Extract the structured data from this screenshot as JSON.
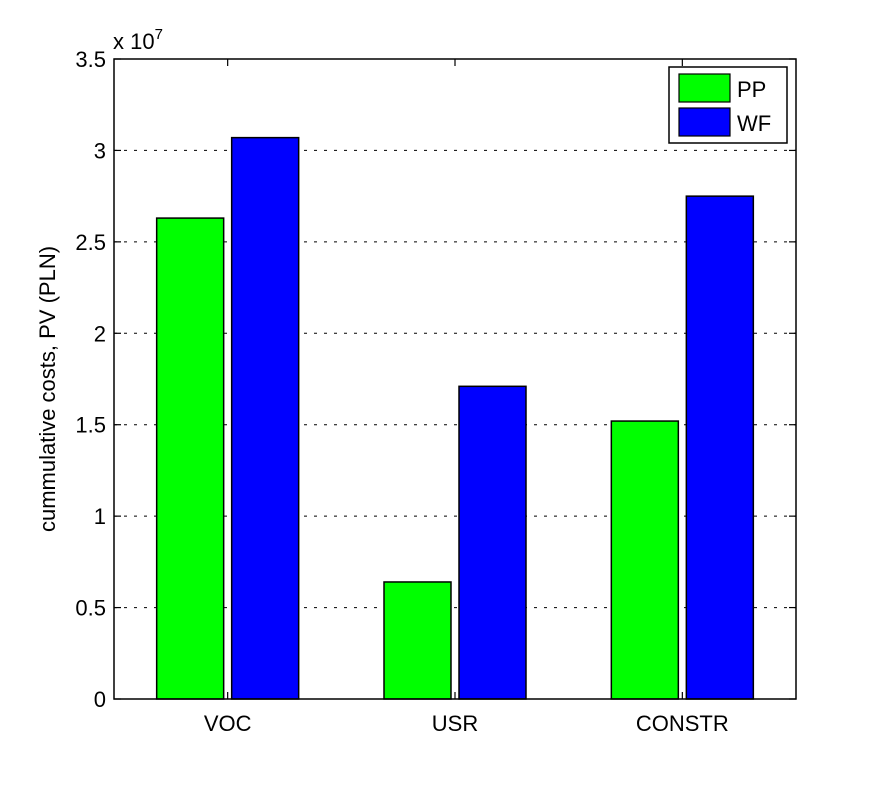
{
  "chart_data": {
    "type": "bar",
    "categories": [
      "VOC",
      "USR",
      "CONSTR"
    ],
    "series": [
      {
        "name": "PP",
        "values": [
          2.63,
          0.64,
          1.52
        ],
        "color": "#00ff00"
      },
      {
        "name": "WF",
        "values": [
          3.07,
          1.71,
          2.75
        ],
        "color": "#0000ff"
      }
    ],
    "ylabel": "cummulative costs, PV (PLN)",
    "y_multiplier_label": "x 10",
    "y_multiplier_exponent": "7",
    "ylim": [
      0,
      3.5
    ],
    "yticks": [
      0,
      0.5,
      1,
      1.5,
      2,
      2.5,
      3,
      3.5
    ],
    "ytick_labels": [
      "0",
      "0.5",
      "1",
      "1.5",
      "2",
      "2.5",
      "3",
      "3.5"
    ],
    "grid": "horizontal dashed",
    "legend_position": "top-right"
  }
}
